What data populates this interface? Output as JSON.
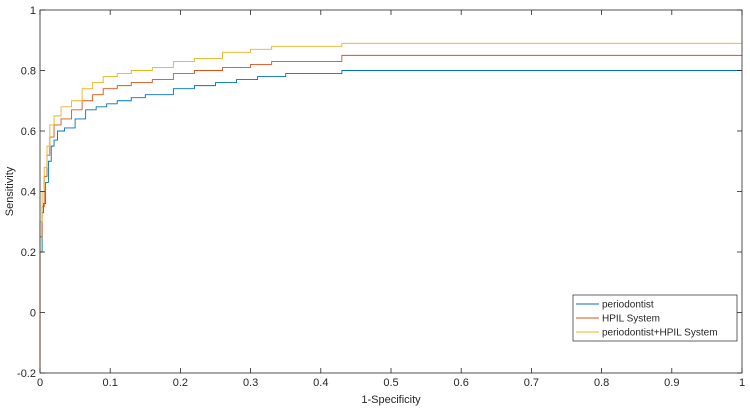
{
  "chart_data": {
    "type": "line",
    "title": "",
    "xlabel": "1-Specificity",
    "ylabel": "Sensitivity",
    "xlim": [
      0,
      1
    ],
    "ylim": [
      -0.2,
      1
    ],
    "xticks": [
      0,
      0.1,
      0.2,
      0.3,
      0.4,
      0.5,
      0.6,
      0.7,
      0.8,
      0.9,
      1
    ],
    "yticks": [
      -0.2,
      0,
      0.2,
      0.4,
      0.6,
      0.8,
      1
    ],
    "xtick_labels": [
      "0",
      "0.1",
      "0.2",
      "0.3",
      "0.4",
      "0.5",
      "0.6",
      "0.7",
      "0.8",
      "0.9",
      "1"
    ],
    "ytick_labels": [
      "-0.2",
      "0",
      "0.2",
      "0.4",
      "0.6",
      "0.8",
      "1"
    ],
    "grid": false,
    "legend_position": "bottom-right",
    "series": [
      {
        "name": "periodontist",
        "color": "#0072BD",
        "points": [
          [
            0,
            -0.18
          ],
          [
            0,
            0.2
          ],
          [
            0.003,
            0.33
          ],
          [
            0.005,
            0.36
          ],
          [
            0.008,
            0.43
          ],
          [
            0.012,
            0.5
          ],
          [
            0.016,
            0.55
          ],
          [
            0.02,
            0.57
          ],
          [
            0.025,
            0.6
          ],
          [
            0.035,
            0.61
          ],
          [
            0.05,
            0.64
          ],
          [
            0.065,
            0.67
          ],
          [
            0.08,
            0.68
          ],
          [
            0.095,
            0.69
          ],
          [
            0.11,
            0.7
          ],
          [
            0.13,
            0.71
          ],
          [
            0.15,
            0.72
          ],
          [
            0.17,
            0.72
          ],
          [
            0.19,
            0.74
          ],
          [
            0.22,
            0.75
          ],
          [
            0.25,
            0.76
          ],
          [
            0.28,
            0.77
          ],
          [
            0.31,
            0.78
          ],
          [
            0.35,
            0.79
          ],
          [
            0.43,
            0.8
          ],
          [
            1,
            0.8
          ]
        ]
      },
      {
        "name": "HPIL System",
        "color": "#D95319",
        "points": [
          [
            0,
            -0.18
          ],
          [
            0,
            0.25
          ],
          [
            0.003,
            0.35
          ],
          [
            0.006,
            0.45
          ],
          [
            0.01,
            0.52
          ],
          [
            0.014,
            0.58
          ],
          [
            0.02,
            0.62
          ],
          [
            0.03,
            0.64
          ],
          [
            0.045,
            0.67
          ],
          [
            0.06,
            0.7
          ],
          [
            0.075,
            0.72
          ],
          [
            0.09,
            0.74
          ],
          [
            0.11,
            0.75
          ],
          [
            0.13,
            0.76
          ],
          [
            0.16,
            0.77
          ],
          [
            0.19,
            0.79
          ],
          [
            0.22,
            0.8
          ],
          [
            0.26,
            0.81
          ],
          [
            0.3,
            0.82
          ],
          [
            0.33,
            0.83
          ],
          [
            0.43,
            0.85
          ],
          [
            1,
            0.85
          ]
        ]
      },
      {
        "name": "periodontist+HPIL System",
        "color": "#EDB120",
        "points": [
          [
            0,
            -0.18
          ],
          [
            0,
            0.3
          ],
          [
            0.003,
            0.4
          ],
          [
            0.006,
            0.48
          ],
          [
            0.01,
            0.55
          ],
          [
            0.014,
            0.62
          ],
          [
            0.02,
            0.65
          ],
          [
            0.03,
            0.68
          ],
          [
            0.045,
            0.7
          ],
          [
            0.06,
            0.74
          ],
          [
            0.075,
            0.76
          ],
          [
            0.09,
            0.78
          ],
          [
            0.11,
            0.79
          ],
          [
            0.13,
            0.8
          ],
          [
            0.16,
            0.81
          ],
          [
            0.19,
            0.83
          ],
          [
            0.22,
            0.84
          ],
          [
            0.26,
            0.86
          ],
          [
            0.3,
            0.87
          ],
          [
            0.33,
            0.88
          ],
          [
            0.43,
            0.89
          ],
          [
            1,
            0.89
          ]
        ]
      }
    ]
  }
}
